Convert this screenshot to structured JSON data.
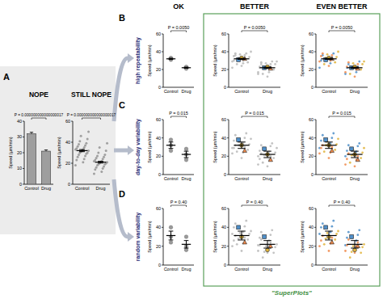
{
  "figure": {
    "columns": [
      "OK",
      "BETTER",
      "EVEN BETTER"
    ],
    "rows": [
      "high repeatability",
      "day-to-day variability",
      "random variability"
    ],
    "panel_labels": [
      "A",
      "B",
      "C",
      "D"
    ],
    "superplots_label": "\"SuperPlots\""
  },
  "chart_data": [
    {
      "type": "bar",
      "title": "NOPE",
      "y_label": "Speed (µm/min)",
      "categories": [
        "Control",
        "Drug"
      ],
      "ylim": [
        0,
        40
      ],
      "yticks": [
        0,
        10,
        20,
        30,
        40
      ],
      "annotation": "P = 0.000000000000000017",
      "color": "#9e9e9e",
      "values": [
        32,
        21
      ],
      "errors": [
        1,
        0.8
      ]
    },
    {
      "type": "scatter",
      "title": "STILL NOPE",
      "y_label": "Speed (µm/min)",
      "categories": [
        "Control",
        "Drug"
      ],
      "ylim": [
        0,
        60
      ],
      "yticks": [
        0,
        20,
        40,
        60
      ],
      "annotation": "P = 0.000000000000000017",
      "color": "#a0a0a0",
      "marker": "circle",
      "values": [
        [
          18,
          21,
          23,
          24,
          26,
          27,
          28,
          29,
          30,
          30,
          31,
          32,
          32,
          33,
          33,
          34,
          35,
          36,
          37,
          38,
          39,
          41,
          43,
          46,
          50
        ],
        [
          10,
          12,
          14,
          15,
          16,
          17,
          18,
          19,
          19,
          20,
          20,
          21,
          21,
          22,
          22,
          23,
          24,
          25,
          26,
          27,
          28,
          30,
          32,
          35,
          39
        ]
      ],
      "means": [
        32,
        21
      ],
      "errors": [
        1,
        0.8
      ]
    },
    {
      "type": "scatter",
      "y_label": "Speed (µm/min)",
      "categories": [
        "Control",
        "Drug"
      ],
      "ylim": [
        0,
        60
      ],
      "yticks": [
        0,
        20,
        40,
        60
      ],
      "annotation": "P = 0.0050",
      "color": "#9a9a9a",
      "marker": "circle",
      "values": [
        [
          31,
          33,
          32
        ],
        [
          22,
          23,
          21
        ]
      ],
      "means": [
        32,
        22
      ],
      "errors": [
        0.6,
        0.6
      ]
    },
    {
      "type": "superplot",
      "y_label": "Speed (µm/min)",
      "categories": [
        "Control",
        "Drug"
      ],
      "ylim": [
        0,
        60
      ],
      "yticks": [
        0,
        20,
        40,
        60
      ],
      "annotation": "P = 0.0050",
      "color": "#b8b8b8",
      "series": [
        {
          "color": "#4f8fc9",
          "marker": "square",
          "values": [
            [
              22,
              27,
              30,
              33,
              36,
              38
            ],
            [
              15,
              17,
              22,
              23,
              26,
              29
            ]
          ],
          "means": [
            31,
            22
          ]
        },
        {
          "color": "#e0b43c",
          "marker": "circle",
          "values": [
            [
              26,
              28,
              33,
              34,
              37,
              40
            ],
            [
              15,
              20,
              21,
              26,
              27,
              29
            ]
          ],
          "means": [
            33,
            23
          ]
        },
        {
          "color": "#f08a4b",
          "marker": "triangle",
          "values": [
            [
              24,
              29,
              30,
              35,
              36,
              38
            ],
            [
              12,
              17,
              20,
              23,
              26,
              28
            ]
          ],
          "means": [
            32,
            21
          ]
        }
      ],
      "means": [
        32,
        22
      ],
      "errors": [
        0.6,
        0.6
      ]
    },
    {
      "type": "superplot",
      "y_label": "Speed (µm/min)",
      "categories": [
        "Control",
        "Drug"
      ],
      "ylim": [
        0,
        60
      ],
      "yticks": [
        0,
        20,
        40,
        60
      ],
      "annotation": "P = 0.0050",
      "series": [
        {
          "color": "#4f8fc9",
          "marker": "square",
          "values": [
            [
              22,
              27,
              30,
              33,
              36,
              38
            ],
            [
              15,
              17,
              22,
              23,
              26,
              29
            ]
          ],
          "means": [
            31,
            22
          ]
        },
        {
          "color": "#e0b43c",
          "marker": "circle",
          "values": [
            [
              26,
              28,
              33,
              34,
              37,
              40
            ],
            [
              15,
              20,
              21,
              26,
              27,
              29
            ]
          ],
          "means": [
            33,
            23
          ]
        },
        {
          "color": "#f08a4b",
          "marker": "triangle",
          "values": [
            [
              24,
              29,
              30,
              35,
              36,
              38
            ],
            [
              12,
              17,
              20,
              23,
              26,
              28
            ]
          ],
          "means": [
            32,
            21
          ]
        }
      ],
      "means": [
        32,
        22
      ],
      "errors": [
        0.6,
        0.6
      ]
    },
    {
      "type": "scatter",
      "y_label": "Speed (µm/min)",
      "categories": [
        "Control",
        "Drug"
      ],
      "ylim": [
        0,
        60
      ],
      "yticks": [
        0,
        20,
        40,
        60
      ],
      "annotation": "P = 0.015",
      "color": "#9a9a9a",
      "marker": "circle",
      "values": [
        [
          38,
          32,
          26
        ],
        [
          28,
          22,
          16
        ]
      ],
      "means": [
        32,
        22
      ],
      "errors": [
        3.5,
        3.5
      ]
    },
    {
      "type": "superplot",
      "y_label": "Speed (µm/min)",
      "categories": [
        "Control",
        "Drug"
      ],
      "ylim": [
        0,
        60
      ],
      "yticks": [
        0,
        20,
        40,
        60
      ],
      "annotation": "P = 0.015",
      "color": "#b8b8b8",
      "series": [
        {
          "color": "#4f8fc9",
          "marker": "square",
          "values": [
            [
              29,
              34,
              37,
              40,
              43,
              45
            ],
            [
              20,
              25,
              26,
              31,
              32,
              34
            ]
          ],
          "means": [
            38,
            28
          ]
        },
        {
          "color": "#e0b43c",
          "marker": "circle",
          "values": [
            [
              25,
              27,
              32,
              33,
              36,
              39
            ],
            [
              13,
              18,
              21,
              24,
              27,
              29
            ]
          ],
          "means": [
            32,
            22
          ]
        },
        {
          "color": "#f08a4b",
          "marker": "triangle",
          "values": [
            [
              18,
              23,
              24,
              29,
              30,
              32
            ],
            [
              9,
              11,
              16,
              17,
              20,
              23
            ]
          ],
          "means": [
            26,
            16
          ]
        }
      ],
      "means": [
        32,
        22
      ],
      "errors": [
        3.5,
        3.5
      ]
    },
    {
      "type": "superplot",
      "y_label": "Speed (µm/min)",
      "categories": [
        "Control",
        "Drug"
      ],
      "ylim": [
        0,
        60
      ],
      "yticks": [
        0,
        20,
        40,
        60
      ],
      "annotation": "P = 0.015",
      "series": [
        {
          "color": "#4f8fc9",
          "marker": "square",
          "values": [
            [
              29,
              34,
              37,
              40,
              43,
              45
            ],
            [
              20,
              25,
              26,
              31,
              32,
              34
            ]
          ],
          "means": [
            38,
            28
          ]
        },
        {
          "color": "#e0b43c",
          "marker": "circle",
          "values": [
            [
              25,
              27,
              32,
              33,
              36,
              39
            ],
            [
              13,
              18,
              21,
              24,
              27,
              29
            ]
          ],
          "means": [
            32,
            22
          ]
        },
        {
          "color": "#f08a4b",
          "marker": "triangle",
          "values": [
            [
              18,
              23,
              24,
              29,
              30,
              32
            ],
            [
              9,
              11,
              16,
              17,
              20,
              23
            ]
          ],
          "means": [
            26,
            16
          ]
        }
      ],
      "means": [
        32,
        22
      ],
      "errors": [
        3.5,
        3.5
      ]
    },
    {
      "type": "scatter",
      "y_label": "Speed (µm/min)",
      "categories": [
        "Control",
        "Drug"
      ],
      "ylim": [
        0,
        60
      ],
      "yticks": [
        0,
        20,
        40,
        60
      ],
      "annotation": "P = 0.40",
      "color": "#9a9a9a",
      "marker": "circle",
      "values": [
        [
          40,
          30,
          24
        ],
        [
          30,
          16,
          20
        ]
      ],
      "means": [
        31.3,
        22
      ],
      "errors": [
        4.7,
        4.0
      ]
    },
    {
      "type": "superplot",
      "y_label": "Speed (µm/min)",
      "categories": [
        "Control",
        "Drug"
      ],
      "ylim": [
        0,
        60
      ],
      "yticks": [
        0,
        20,
        40,
        60
      ],
      "annotation": "P = 0.40",
      "color": "#b8b8b8",
      "series": [
        {
          "color": "#4f8fc9",
          "marker": "square",
          "values": [
            [
              33,
              35,
              40,
              41,
              44,
              47
            ],
            [
              21,
              26,
              29,
              32,
              35,
              37
            ]
          ],
          "means": [
            40,
            30
          ]
        },
        {
          "color": "#e0b43c",
          "marker": "circle",
          "values": [
            [
              22,
              27,
              28,
              33,
              34,
              36
            ],
            [
              8,
              13,
              14,
              19,
              20,
              22
            ]
          ],
          "means": [
            30,
            16
          ]
        },
        {
          "color": "#f08a4b",
          "marker": "triangle",
          "values": [
            [
              15,
              20,
              23,
              26,
              29,
              31
            ],
            [
              13,
              15,
              20,
              21,
              24,
              27
            ]
          ],
          "means": [
            24,
            20
          ]
        }
      ],
      "means": [
        31.3,
        22
      ],
      "errors": [
        4.7,
        4.0
      ]
    },
    {
      "type": "superplot",
      "y_label": "Speed (µm/min)",
      "categories": [
        "Control",
        "Drug"
      ],
      "ylim": [
        0,
        60
      ],
      "yticks": [
        0,
        20,
        40,
        60
      ],
      "annotation": "P = 0.40",
      "series": [
        {
          "color": "#4f8fc9",
          "marker": "square",
          "values": [
            [
              33,
              35,
              40,
              41,
              44,
              47
            ],
            [
              21,
              26,
              29,
              32,
              35,
              37
            ]
          ],
          "means": [
            40,
            30
          ]
        },
        {
          "color": "#e0b43c",
          "marker": "circle",
          "values": [
            [
              22,
              27,
              28,
              33,
              34,
              36
            ],
            [
              8,
              13,
              14,
              19,
              20,
              22
            ]
          ],
          "means": [
            30,
            16
          ]
        },
        {
          "color": "#f08a4b",
          "marker": "triangle",
          "values": [
            [
              15,
              20,
              23,
              26,
              29,
              31
            ],
            [
              13,
              15,
              20,
              21,
              24,
              27
            ]
          ],
          "means": [
            24,
            20
          ]
        }
      ],
      "means": [
        31.3,
        22
      ],
      "errors": [
        4.7,
        4.0
      ]
    }
  ]
}
